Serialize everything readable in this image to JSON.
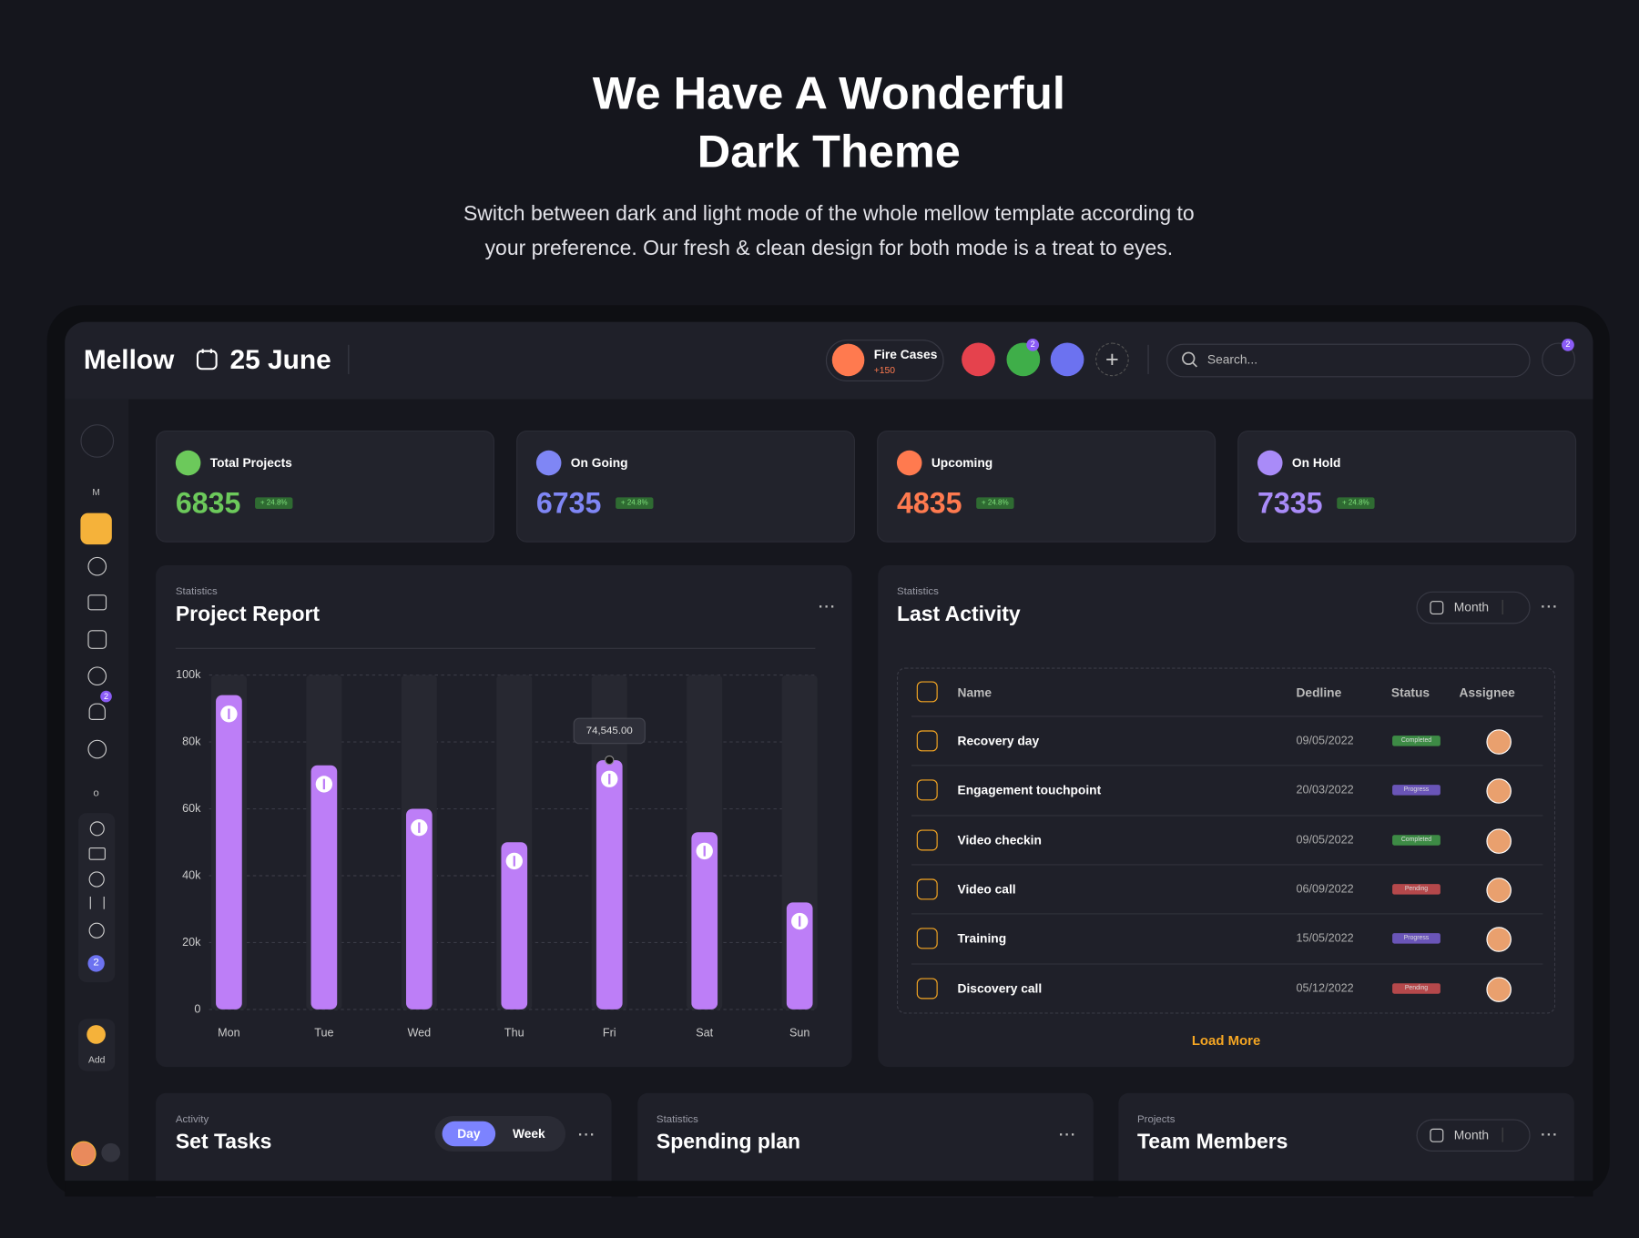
{
  "hero": {
    "title": [
      "We Have A Wonderful",
      "Dark Theme"
    ],
    "subtitle": [
      "Switch between dark and light mode of the whole mellow template according to",
      "your preference. Our fresh & clean design for both mode is a treat to eyes."
    ]
  },
  "header": {
    "brand": "Mellow",
    "date": "25 June",
    "fire_cases": {
      "label": "Fire Cases",
      "value": "+150"
    },
    "mail_badge": "2",
    "search_placeholder": "Search...",
    "notification_badge": "2"
  },
  "sidebar": {
    "section_m": "M",
    "alert_badge": "2",
    "section_o": "o",
    "group_badge": "2",
    "add": "Add"
  },
  "stats": [
    {
      "label": "Total Projects",
      "value": 6835,
      "change": "+ 24.8%",
      "color": "#6cc95b"
    },
    {
      "label": "On Going",
      "value": 6735,
      "change": "+ 24.8%",
      "color": "#7f86f5"
    },
    {
      "label": "Upcoming",
      "value": 4835,
      "change": "+ 24.8%",
      "color": "#ff7a4f"
    },
    {
      "label": "On Hold",
      "value": 7335,
      "change": "+ 24.8%",
      "color": "#a98bf8"
    }
  ],
  "project_report": {
    "kicker": "Statistics",
    "title": "Project Report",
    "chart_data": {
      "type": "bar",
      "categories": [
        "Mon",
        "Tue",
        "Wed",
        "Thu",
        "Fri",
        "Sat",
        "Sun"
      ],
      "values": [
        94000,
        73000,
        60000,
        50000,
        74545,
        53000,
        32000
      ],
      "value_labels": [
        null,
        null,
        null,
        null,
        "74,545.00",
        null,
        null
      ],
      "color": "#bd7ef7",
      "ylim": [
        0,
        100000
      ],
      "yticks": [
        0,
        {
          "value": 20000,
          "label": "20k"
        },
        {
          "value": 40000,
          "label": "40k"
        },
        {
          "value": 60000,
          "label": "60k"
        },
        {
          "value": 80000,
          "label": "80k"
        },
        {
          "value": 100000,
          "label": "100k"
        }
      ],
      "grid": true
    }
  },
  "last_activity": {
    "kicker": "Statistics",
    "title": "Last Activity",
    "filter": "Month",
    "table": {
      "columns": [
        "Name",
        "Dedline",
        "Status",
        "Assignee"
      ],
      "rows": [
        {
          "name": "Recovery day",
          "deadline": "09/05/2022",
          "status": "Completed",
          "status_color": "#3d8b45"
        },
        {
          "name": "Engagement touchpoint",
          "deadline": "20/03/2022",
          "status": "Progress",
          "status_color": "#6a55b8"
        },
        {
          "name": "Video checkin",
          "deadline": "09/05/2022",
          "status": "Completed",
          "status_color": "#3d8b45"
        },
        {
          "name": "Video call",
          "deadline": "06/09/2022",
          "status": "Pending",
          "status_color": "#b5484b"
        },
        {
          "name": "Training",
          "deadline": "15/05/2022",
          "status": "Progress",
          "status_color": "#6a55b8"
        },
        {
          "name": "Discovery call",
          "deadline": "05/12/2022",
          "status": "Pending",
          "status_color": "#b5484b"
        }
      ]
    },
    "load_more": "Load More"
  },
  "set_tasks": {
    "kicker": "Activity",
    "title": "Set Tasks",
    "tabs": [
      "Day",
      "Week"
    ]
  },
  "spending_plan": {
    "kicker": "Statistics",
    "title": "Spending plan"
  },
  "team_members": {
    "kicker": "Projects",
    "title": "Team Members",
    "filter": "Month"
  }
}
